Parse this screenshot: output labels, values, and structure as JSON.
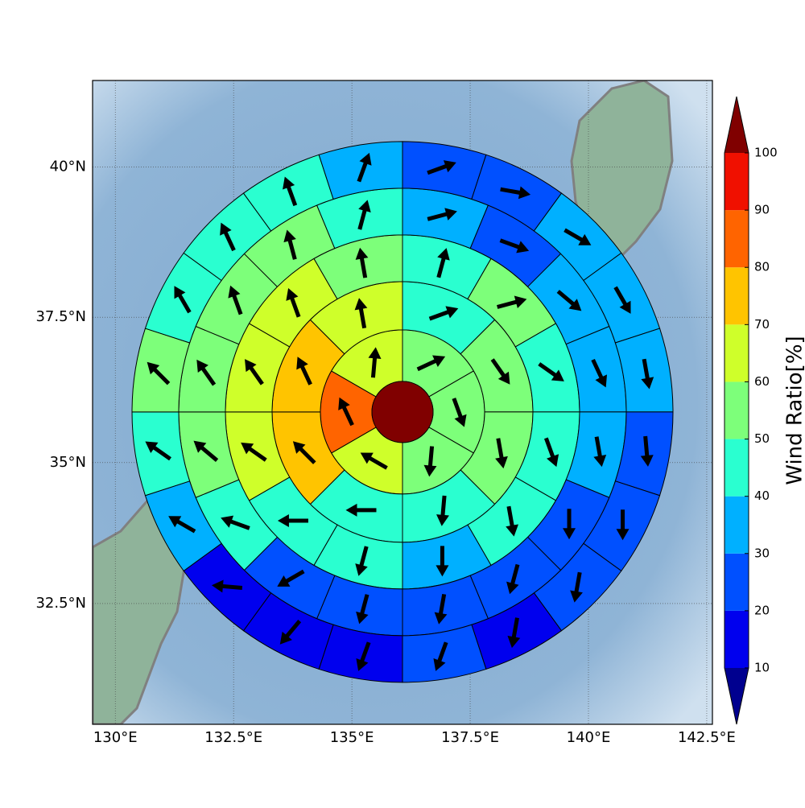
{
  "chart_data": {
    "type": "polar-sector",
    "xlim": [
      129.52,
      142.62
    ],
    "ylim": [
      30.3,
      41.4
    ],
    "xticks": [
      {
        "value": 130,
        "label": "130°E"
      },
      {
        "value": 132.5,
        "label": "132.5°E"
      },
      {
        "value": 135,
        "label": "135°E"
      },
      {
        "value": 137.5,
        "label": "137.5°E"
      },
      {
        "value": 140,
        "label": "140°E"
      },
      {
        "value": 142.5,
        "label": "142.5°E"
      }
    ],
    "yticks": [
      {
        "value": 32.5,
        "label": "32.5°N"
      },
      {
        "value": 35,
        "label": "35°N"
      },
      {
        "value": 37.5,
        "label": "37.5°N"
      },
      {
        "value": 40,
        "label": "40°N"
      }
    ],
    "grid": true,
    "center": {
      "lon": 136.07,
      "lat": 35.88,
      "value": 105
    },
    "rings": [
      {
        "values": [
          55,
          55,
          55,
          65,
          85,
          65
        ],
        "directions": [
          65,
          160,
          185,
          300,
          335,
          5
        ]
      },
      {
        "values": [
          45,
          55,
          55,
          45,
          45,
          75,
          75,
          65
        ],
        "directions": [
          70,
          145,
          170,
          185,
          270,
          315,
          335,
          350
        ]
      },
      {
        "values": [
          45,
          55,
          45,
          45,
          45,
          35,
          45,
          45,
          65,
          65,
          65,
          55
        ],
        "directions": [
          15,
          75,
          125,
          160,
          170,
          180,
          195,
          270,
          305,
          325,
          340,
          350
        ]
      },
      {
        "values": [
          35,
          25,
          35,
          35,
          35,
          25,
          25,
          25,
          25,
          25,
          45,
          55,
          55,
          55,
          55,
          45
        ],
        "directions": [
          75,
          110,
          130,
          155,
          170,
          180,
          195,
          190,
          195,
          240,
          290,
          310,
          325,
          340,
          345,
          15
        ]
      },
      {
        "values": [
          25,
          25,
          35,
          35,
          35,
          25,
          25,
          25,
          15,
          25,
          15,
          15,
          15,
          35,
          45,
          55,
          45,
          45,
          45,
          35
        ],
        "directions": [
          70,
          100,
          120,
          150,
          170,
          175,
          180,
          190,
          190,
          200,
          200,
          220,
          275,
          300,
          305,
          315,
          330,
          335,
          340,
          20
        ]
      }
    ],
    "colorbar": {
      "label": "Wind Ratio[%]",
      "levels": [
        10,
        20,
        30,
        40,
        50,
        60,
        70,
        80,
        90,
        100
      ],
      "colors": [
        "#0000ee",
        "#0050ff",
        "#00b0ff",
        "#2affd0",
        "#7dff7a",
        "#cfff2a",
        "#ffc400",
        "#ff6400",
        "#f01000"
      ],
      "under_color": "#00008f",
      "over_color": "#800000"
    }
  }
}
